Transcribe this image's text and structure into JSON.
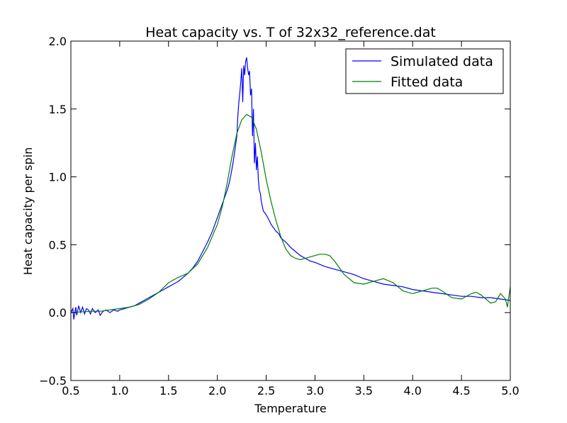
{
  "chart_data": {
    "type": "line",
    "title": "Heat capacity vs. T of 32x32_reference.dat",
    "xlabel": "Temperature",
    "ylabel": "Heat capacity per spin",
    "xlim": [
      0.5,
      5.0
    ],
    "ylim": [
      -0.5,
      2.0
    ],
    "x_ticks": [
      0.5,
      1.0,
      1.5,
      2.0,
      2.5,
      3.0,
      3.5,
      4.0,
      4.5,
      5.0
    ],
    "x_tick_labels": [
      "0.5",
      "1.0",
      "1.5",
      "2.0",
      "2.5",
      "3.0",
      "3.5",
      "4.0",
      "4.5",
      "5.0"
    ],
    "y_ticks": [
      -0.5,
      0.0,
      0.5,
      1.0,
      1.5,
      2.0
    ],
    "y_tick_labels": [
      "−0.5",
      "0.0",
      "0.5",
      "1.0",
      "1.5",
      "2.0"
    ],
    "grid": false,
    "legend_position": "top-right",
    "series": [
      {
        "name": "Simulated data",
        "color": "#0000ff",
        "x": [
          0.5,
          0.52,
          0.53,
          0.55,
          0.56,
          0.58,
          0.6,
          0.62,
          0.64,
          0.66,
          0.68,
          0.7,
          0.72,
          0.75,
          0.78,
          0.8,
          0.83,
          0.86,
          0.9,
          0.94,
          0.98,
          1.0,
          1.05,
          1.1,
          1.15,
          1.2,
          1.25,
          1.3,
          1.35,
          1.4,
          1.45,
          1.5,
          1.55,
          1.6,
          1.65,
          1.7,
          1.75,
          1.8,
          1.85,
          1.9,
          1.95,
          2.0,
          2.05,
          2.08,
          2.1,
          2.12,
          2.14,
          2.16,
          2.18,
          2.2,
          2.21,
          2.22,
          2.23,
          2.24,
          2.25,
          2.26,
          2.27,
          2.28,
          2.29,
          2.3,
          2.31,
          2.32,
          2.33,
          2.34,
          2.35,
          2.36,
          2.37,
          2.38,
          2.39,
          2.4,
          2.41,
          2.42,
          2.43,
          2.44,
          2.45,
          2.47,
          2.5,
          2.53,
          2.55,
          2.58,
          2.6,
          2.63,
          2.65,
          2.7,
          2.75,
          2.8,
          2.85,
          2.9,
          2.95,
          3.0,
          3.1,
          3.2,
          3.3,
          3.4,
          3.5,
          3.6,
          3.7,
          3.8,
          3.9,
          4.0,
          4.1,
          4.2,
          4.3,
          4.4,
          4.5,
          4.6,
          4.7,
          4.8,
          4.9,
          5.0
        ],
        "y": [
          0.0,
          0.03,
          -0.05,
          0.04,
          -0.02,
          0.05,
          0.0,
          0.04,
          -0.01,
          0.03,
          0.02,
          -0.01,
          0.03,
          0.0,
          0.02,
          -0.02,
          0.01,
          0.02,
          0.0,
          0.02,
          0.01,
          0.02,
          0.03,
          0.04,
          0.05,
          0.07,
          0.09,
          0.11,
          0.13,
          0.15,
          0.17,
          0.19,
          0.21,
          0.23,
          0.26,
          0.29,
          0.33,
          0.38,
          0.45,
          0.52,
          0.6,
          0.7,
          0.8,
          0.86,
          0.9,
          0.95,
          1.02,
          1.1,
          1.2,
          1.3,
          1.45,
          1.55,
          1.62,
          1.7,
          1.8,
          1.55,
          1.82,
          1.75,
          1.85,
          1.88,
          1.8,
          1.75,
          1.78,
          1.6,
          1.65,
          1.3,
          1.5,
          1.1,
          1.25,
          1.05,
          1.15,
          0.98,
          0.9,
          0.88,
          0.82,
          0.75,
          0.72,
          0.68,
          0.65,
          0.62,
          0.6,
          0.58,
          0.55,
          0.52,
          0.48,
          0.45,
          0.42,
          0.4,
          0.38,
          0.37,
          0.34,
          0.32,
          0.3,
          0.28,
          0.25,
          0.23,
          0.21,
          0.2,
          0.19,
          0.17,
          0.16,
          0.15,
          0.14,
          0.13,
          0.12,
          0.12,
          0.11,
          0.11,
          0.1,
          0.09
        ]
      },
      {
        "name": "Fitted data",
        "color": "#008000",
        "x": [
          0.5,
          0.6,
          0.7,
          0.8,
          0.9,
          1.0,
          1.1,
          1.2,
          1.3,
          1.4,
          1.5,
          1.6,
          1.7,
          1.8,
          1.9,
          2.0,
          2.05,
          2.1,
          2.15,
          2.2,
          2.25,
          2.3,
          2.35,
          2.4,
          2.45,
          2.5,
          2.55,
          2.6,
          2.65,
          2.7,
          2.75,
          2.8,
          2.85,
          2.9,
          2.95,
          3.0,
          3.05,
          3.1,
          3.15,
          3.2,
          3.3,
          3.4,
          3.5,
          3.6,
          3.7,
          3.8,
          3.9,
          4.0,
          4.1,
          4.2,
          4.25,
          4.3,
          4.4,
          4.5,
          4.6,
          4.65,
          4.7,
          4.8,
          4.85,
          4.9,
          4.95,
          4.97,
          5.0
        ],
        "y": [
          0.0,
          0.005,
          0.01,
          0.01,
          0.02,
          0.03,
          0.04,
          0.06,
          0.1,
          0.15,
          0.22,
          0.26,
          0.29,
          0.36,
          0.48,
          0.65,
          0.78,
          0.95,
          1.15,
          1.32,
          1.42,
          1.46,
          1.44,
          1.35,
          1.18,
          0.98,
          0.82,
          0.68,
          0.56,
          0.47,
          0.42,
          0.4,
          0.39,
          0.4,
          0.41,
          0.42,
          0.43,
          0.43,
          0.42,
          0.38,
          0.28,
          0.22,
          0.21,
          0.23,
          0.25,
          0.22,
          0.16,
          0.14,
          0.16,
          0.18,
          0.18,
          0.16,
          0.11,
          0.1,
          0.14,
          0.15,
          0.13,
          0.07,
          0.08,
          0.14,
          0.1,
          0.04,
          0.19
        ]
      }
    ]
  }
}
